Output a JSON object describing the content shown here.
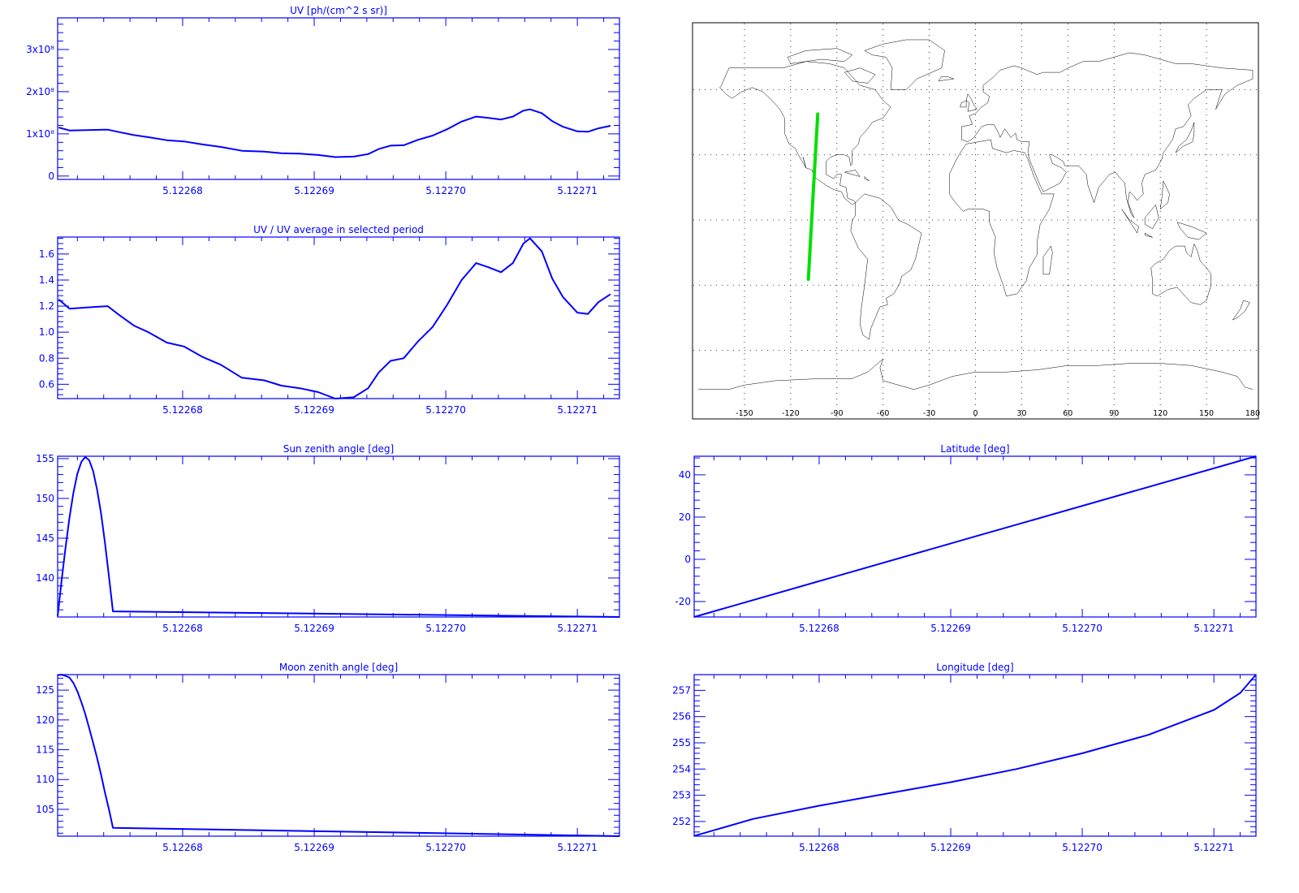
{
  "colors": {
    "axes": "#0000ff",
    "series": "#0000ff",
    "track": "#00e000",
    "coast": "#000000"
  },
  "chart_data": [
    {
      "id": "uv",
      "type": "line",
      "title": "UV [ph/(cm^2 s sr)]",
      "xlim": [
        5.1226705,
        5.1227132
      ],
      "ylim": [
        -8000000,
        375000000
      ],
      "xticks": [
        5.12268,
        5.12269,
        5.1227,
        5.12271
      ],
      "xtick_labels": [
        "5.12268",
        "5.12269",
        "5.12270",
        "5.12271"
      ],
      "yticks": [
        0,
        100000000,
        200000000,
        300000000
      ],
      "ytick_labels": [
        "0",
        "1x10⁸",
        "2x10⁸",
        "3x10⁸"
      ],
      "x": [
        5.1226706,
        5.1226714,
        5.1226727,
        5.1226743,
        5.1226752,
        5.1226763,
        5.1226774,
        5.1226788,
        5.1226801,
        5.1226815,
        5.1226829,
        5.1226845,
        5.1226862,
        5.1226875,
        5.1226889,
        5.1226903,
        5.1226916,
        5.122693,
        5.1226941,
        5.1226949,
        5.1226958,
        5.1226968,
        5.1226979,
        5.122699,
        5.1227001,
        5.1227012,
        5.1227023,
        5.1227032,
        5.1227042,
        5.1227051,
        5.1227059,
        5.1227064,
        5.1227073,
        5.1227081,
        5.1227089,
        5.12271,
        5.1227108,
        5.1227116,
        5.1227125
      ],
      "y": [
        115000000,
        108000000,
        109000000,
        110000000,
        104000000,
        97000000,
        92000000,
        85000000,
        82000000,
        75000000,
        69000000,
        60000000,
        58000000,
        54000000,
        53000000,
        50000000,
        45000000,
        46000000,
        52000000,
        64000000,
        72000000,
        73000000,
        86000000,
        96000000,
        111000000,
        129000000,
        141000000,
        138000000,
        134000000,
        141000000,
        155000000,
        158000000,
        149000000,
        130000000,
        117000000,
        106000000,
        105000000,
        113000000,
        119000000
      ]
    },
    {
      "id": "uv_ratio",
      "type": "line",
      "title": "UV / UV average in selected period",
      "xlim": [
        5.1226705,
        5.1227132
      ],
      "ylim": [
        0.49,
        1.73
      ],
      "xticks": [
        5.12268,
        5.12269,
        5.1227,
        5.12271
      ],
      "xtick_labels": [
        "5.12268",
        "5.12269",
        "5.12270",
        "5.12271"
      ],
      "yticks": [
        0.6,
        0.8,
        1.0,
        1.2,
        1.4,
        1.6
      ],
      "ytick_labels": [
        "0.6",
        "0.8",
        "1.0",
        "1.2",
        "1.4",
        "1.6"
      ],
      "x": [
        5.1226706,
        5.1226714,
        5.1226727,
        5.1226743,
        5.1226752,
        5.1226763,
        5.1226774,
        5.1226788,
        5.1226801,
        5.1226815,
        5.1226829,
        5.1226845,
        5.1226862,
        5.1226875,
        5.1226889,
        5.1226903,
        5.1226916,
        5.122693,
        5.1226941,
        5.1226949,
        5.1226958,
        5.1226968,
        5.1226979,
        5.122699,
        5.1227001,
        5.1227012,
        5.1227023,
        5.1227032,
        5.1227042,
        5.1227051,
        5.1227059,
        5.1227064,
        5.1227073,
        5.1227081,
        5.1227089,
        5.12271,
        5.1227108,
        5.1227116,
        5.1227125
      ],
      "y": [
        1.25,
        1.18,
        1.19,
        1.2,
        1.13,
        1.05,
        1.0,
        0.92,
        0.89,
        0.81,
        0.75,
        0.65,
        0.63,
        0.59,
        0.57,
        0.54,
        0.49,
        0.5,
        0.57,
        0.69,
        0.78,
        0.8,
        0.93,
        1.04,
        1.21,
        1.4,
        1.53,
        1.5,
        1.46,
        1.53,
        1.68,
        1.72,
        1.62,
        1.41,
        1.27,
        1.15,
        1.14,
        1.23,
        1.29
      ]
    },
    {
      "id": "sun_zenith",
      "type": "line",
      "title": "Sun zenith angle [deg]",
      "xlim": [
        5.1226705,
        5.1227132
      ],
      "ylim": [
        135.1,
        155.3
      ],
      "xticks": [
        5.12268,
        5.12269,
        5.1227,
        5.12271
      ],
      "xtick_labels": [
        "5.12268",
        "5.12269",
        "5.12270",
        "5.12271"
      ],
      "yticks": [
        140,
        145,
        150,
        155
      ],
      "ytick_labels": [
        "140",
        "145",
        "150",
        "155"
      ],
      "x": [],
      "y": []
    },
    {
      "id": "moon_zenith",
      "type": "line",
      "title": "Moon zenith angle [deg]",
      "xlim": [
        5.1226705,
        5.1227132
      ],
      "ylim": [
        100.5,
        127.6
      ],
      "xticks": [
        5.12268,
        5.12269,
        5.1227,
        5.12271
      ],
      "xtick_labels": [
        "5.12268",
        "5.12269",
        "5.12270",
        "5.12271"
      ],
      "yticks": [
        105,
        110,
        115,
        120,
        125
      ],
      "ytick_labels": [
        "105",
        "110",
        "115",
        "120",
        "125"
      ],
      "x": [],
      "y": []
    },
    {
      "id": "latitude",
      "type": "line",
      "title": "Latitude [deg]",
      "xlim": [
        5.1226705,
        5.1227132
      ],
      "ylim": [
        -27.3,
        48.8
      ],
      "xticks": [
        5.12268,
        5.12269,
        5.1227,
        5.12271
      ],
      "xtick_labels": [
        "5.12268",
        "5.12269",
        "5.12270",
        "5.12271"
      ],
      "yticks": [
        -20,
        0,
        20,
        40
      ],
      "ytick_labels": [
        "-20",
        "0",
        "20",
        "40"
      ],
      "x": [
        5.1226705,
        5.1226918,
        5.1227132
      ],
      "y": [
        -27.3,
        10.7,
        48.8
      ]
    },
    {
      "id": "longitude",
      "type": "line",
      "title": "Longitude [deg]",
      "xlim": [
        5.1226705,
        5.1227132
      ],
      "ylim": [
        251.44,
        257.6
      ],
      "xticks": [
        5.12268,
        5.12269,
        5.1227,
        5.12271
      ],
      "xtick_labels": [
        "5.12268",
        "5.12269",
        "5.12270",
        "5.12271"
      ],
      "yticks": [
        252,
        253,
        254,
        255,
        256,
        257
      ],
      "ytick_labels": [
        "252",
        "253",
        "254",
        "255",
        "256",
        "257"
      ],
      "x": [
        5.1226705,
        5.122675,
        5.12268,
        5.122685,
        5.12269,
        5.122695,
        5.1227,
        5.122705,
        5.12271,
        5.122712,
        5.1227132
      ],
      "y": [
        251.45,
        252.1,
        252.6,
        253.05,
        253.5,
        254.0,
        254.6,
        255.3,
        256.25,
        256.9,
        257.6
      ]
    },
    {
      "id": "ground_track_map",
      "type": "map",
      "xlim": [
        -180,
        180
      ],
      "ylim": [
        -90,
        90
      ],
      "xticks": [
        -150,
        -120,
        -90,
        -60,
        -30,
        0,
        30,
        60,
        90,
        120,
        150,
        180
      ],
      "xtick_labels": [
        "-150",
        "-120",
        "-90",
        "-60",
        "-30",
        "0",
        "30",
        "60",
        "90",
        "120",
        "150",
        "180"
      ],
      "grid_lat": [
        -60,
        -30,
        0,
        30,
        60
      ],
      "track": {
        "lon": [
          -108.5,
          -105.5,
          -102.4
        ],
        "lat": [
          -27.3,
          10.7,
          48.8
        ]
      }
    }
  ]
}
